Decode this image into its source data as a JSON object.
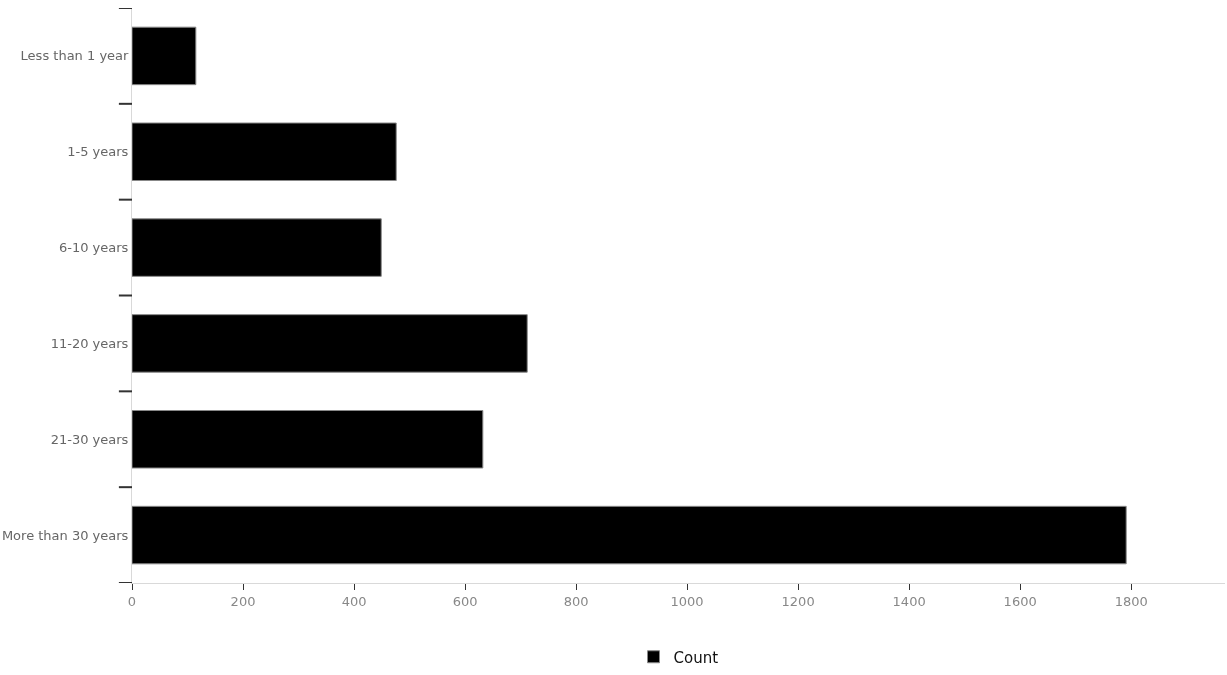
{
  "chart_data": {
    "type": "bar",
    "orientation": "horizontal",
    "categories": [
      "Less than 1 year",
      "1-5 years",
      "6-10 years",
      "11-20 years",
      "21-30 years",
      "More than 30 years"
    ],
    "series": [
      {
        "name": "Count",
        "color": "#000000",
        "values": [
          115,
          476,
          449,
          712,
          632,
          1791
        ]
      }
    ],
    "xlim": [
      0,
      1969
    ],
    "xticks": [
      0,
      200,
      400,
      600,
      800,
      1000,
      1200,
      1400,
      1600,
      1800
    ],
    "legend": "bottom"
  }
}
